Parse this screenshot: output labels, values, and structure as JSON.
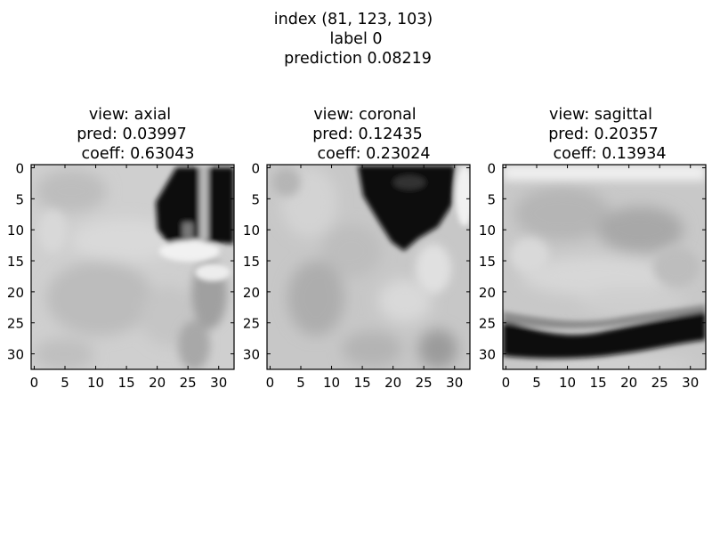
{
  "figure": {
    "suptitle_lines": [
      "index (81, 123, 103)",
      "label 0",
      "prediction 0.08219"
    ]
  },
  "chart_data": [
    {
      "type": "heatmap",
      "colormap": "grayscale",
      "title_lines": [
        "view: axial",
        "pred: 0.03997",
        "coeff: 0.63043"
      ],
      "xlim": [
        -0.5,
        32.5
      ],
      "ylim": [
        32.5,
        -0.5
      ],
      "x_ticks": [
        0,
        5,
        10,
        15,
        20,
        25,
        30
      ],
      "y_ticks": [
        0,
        5,
        10,
        15,
        20,
        25,
        30
      ],
      "grid": false,
      "image_regions": [
        {
          "description": "dark region",
          "x_range": [
            19,
            32
          ],
          "y_range": [
            0,
            12
          ],
          "intensity": "black"
        },
        {
          "description": "bright vertical line",
          "x_range": [
            24,
            26
          ],
          "y_range": [
            0,
            11
          ],
          "intensity": "light gray"
        },
        {
          "description": "bright region",
          "x_range": [
            20,
            27
          ],
          "y_range": [
            11,
            17
          ],
          "intensity": "white"
        }
      ]
    },
    {
      "type": "heatmap",
      "colormap": "grayscale",
      "title_lines": [
        "view: coronal",
        "pred: 0.12435",
        "coeff: 0.23024"
      ],
      "xlim": [
        -0.5,
        32.5
      ],
      "ylim": [
        32.5,
        -0.5
      ],
      "x_ticks": [
        0,
        5,
        10,
        15,
        20,
        25,
        30
      ],
      "y_ticks": [
        0,
        5,
        10,
        15,
        20,
        25,
        30
      ],
      "grid": false,
      "image_regions": [
        {
          "description": "dark region",
          "x_range": [
            14,
            29
          ],
          "y_range": [
            0,
            13
          ],
          "intensity": "black"
        },
        {
          "description": "bright right edge",
          "x_range": [
            29,
            32
          ],
          "y_range": [
            0,
            7
          ],
          "intensity": "white"
        }
      ]
    },
    {
      "type": "heatmap",
      "colormap": "grayscale",
      "title_lines": [
        "view: sagittal",
        "pred: 0.20357",
        "coeff: 0.13934"
      ],
      "xlim": [
        -0.5,
        32.5
      ],
      "ylim": [
        32.5,
        -0.5
      ],
      "x_ticks": [
        0,
        5,
        10,
        15,
        20,
        25,
        30
      ],
      "y_ticks": [
        0,
        5,
        10,
        15,
        20,
        25,
        30
      ],
      "grid": false,
      "image_regions": [
        {
          "description": "dark curved band",
          "x_range": [
            0,
            32
          ],
          "y_range": [
            25,
            31
          ],
          "intensity": "black"
        },
        {
          "description": "bright top edge",
          "x_range": [
            0,
            32
          ],
          "y_range": [
            0,
            3
          ],
          "intensity": "white"
        }
      ]
    }
  ]
}
